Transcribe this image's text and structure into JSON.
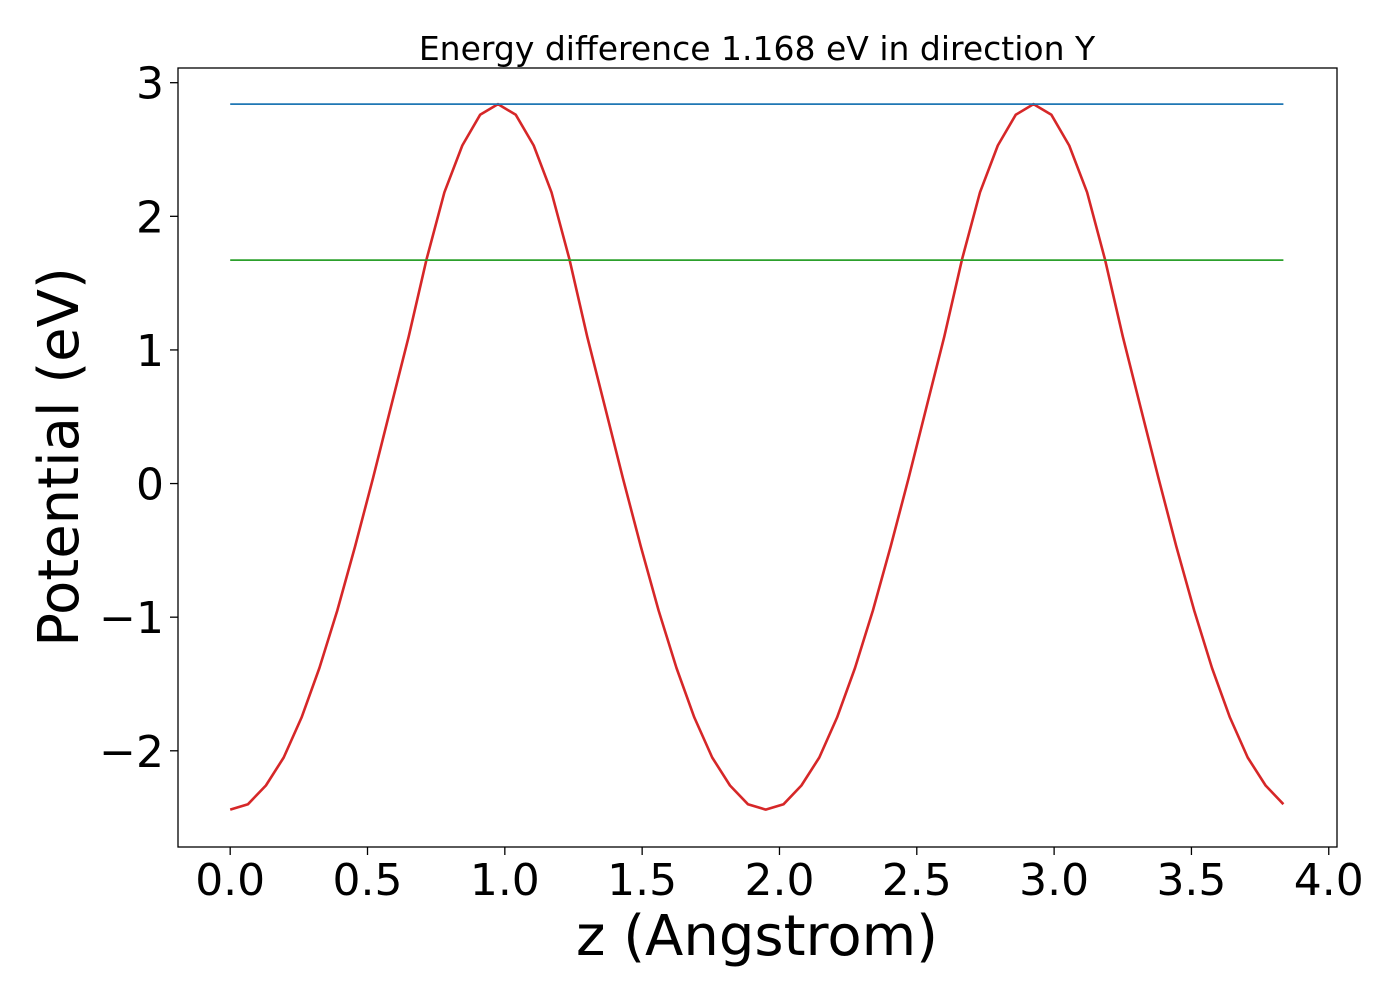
{
  "chart_data": {
    "type": "line",
    "title": "Energy difference 1.168 eV in direction Y",
    "xlabel": "z (Angstrom)",
    "ylabel": "Potential (eV)",
    "xlim": [
      -0.19,
      4.03
    ],
    "ylim": [
      -2.72,
      3.11
    ],
    "xticks": [
      0.0,
      0.5,
      1.0,
      1.5,
      2.0,
      2.5,
      3.0,
      3.5,
      4.0
    ],
    "xtick_labels": [
      "0.0",
      "0.5",
      "1.0",
      "1.5",
      "2.0",
      "2.5",
      "3.0",
      "3.5",
      "4.0"
    ],
    "yticks": [
      -2,
      -1,
      0,
      1,
      2,
      3
    ],
    "ytick_labels": [
      "−2",
      "−1",
      "0",
      "1",
      "2",
      "3"
    ],
    "grid": false,
    "series": [
      {
        "color": "#d62728",
        "x": [
          0.0,
          0.065,
          0.13,
          0.195,
          0.26,
          0.325,
          0.39,
          0.455,
          0.52,
          0.585,
          0.65,
          0.715,
          0.78,
          0.845,
          0.91,
          0.975,
          1.04,
          1.105,
          1.17,
          1.235,
          1.3,
          1.365,
          1.43,
          1.495,
          1.56,
          1.625,
          1.69,
          1.755,
          1.82,
          1.885,
          1.95,
          2.015,
          2.08,
          2.145,
          2.21,
          2.275,
          2.34,
          2.405,
          2.47,
          2.535,
          2.6,
          2.665,
          2.73,
          2.795,
          2.86,
          2.925,
          2.99,
          3.055,
          3.12,
          3.185,
          3.25,
          3.315,
          3.38,
          3.445,
          3.51,
          3.575,
          3.64,
          3.705,
          3.77,
          3.835
        ],
        "y": [
          -2.44,
          -2.4,
          -2.26,
          -2.05,
          -1.75,
          -1.38,
          -0.95,
          -0.47,
          0.04,
          0.57,
          1.1,
          1.68,
          2.18,
          2.53,
          2.76,
          2.84,
          2.76,
          2.53,
          2.18,
          1.68,
          1.1,
          0.57,
          0.04,
          -0.47,
          -0.95,
          -1.38,
          -1.75,
          -2.05,
          -2.26,
          -2.4,
          -2.44,
          -2.4,
          -2.26,
          -2.05,
          -1.75,
          -1.38,
          -0.95,
          -0.47,
          0.04,
          0.57,
          1.1,
          1.68,
          2.18,
          2.53,
          2.76,
          2.84,
          2.76,
          2.53,
          2.18,
          1.68,
          1.1,
          0.57,
          0.04,
          -0.47,
          -0.95,
          -1.38,
          -1.75,
          -2.05,
          -2.26,
          -2.4
        ]
      },
      {
        "color": "#1f77b4",
        "x": [
          0.0,
          3.835
        ],
        "y": [
          2.84,
          2.84
        ]
      },
      {
        "color": "#2ca02c",
        "x": [
          0.0,
          3.835
        ],
        "y": [
          1.672,
          1.672
        ]
      }
    ]
  }
}
